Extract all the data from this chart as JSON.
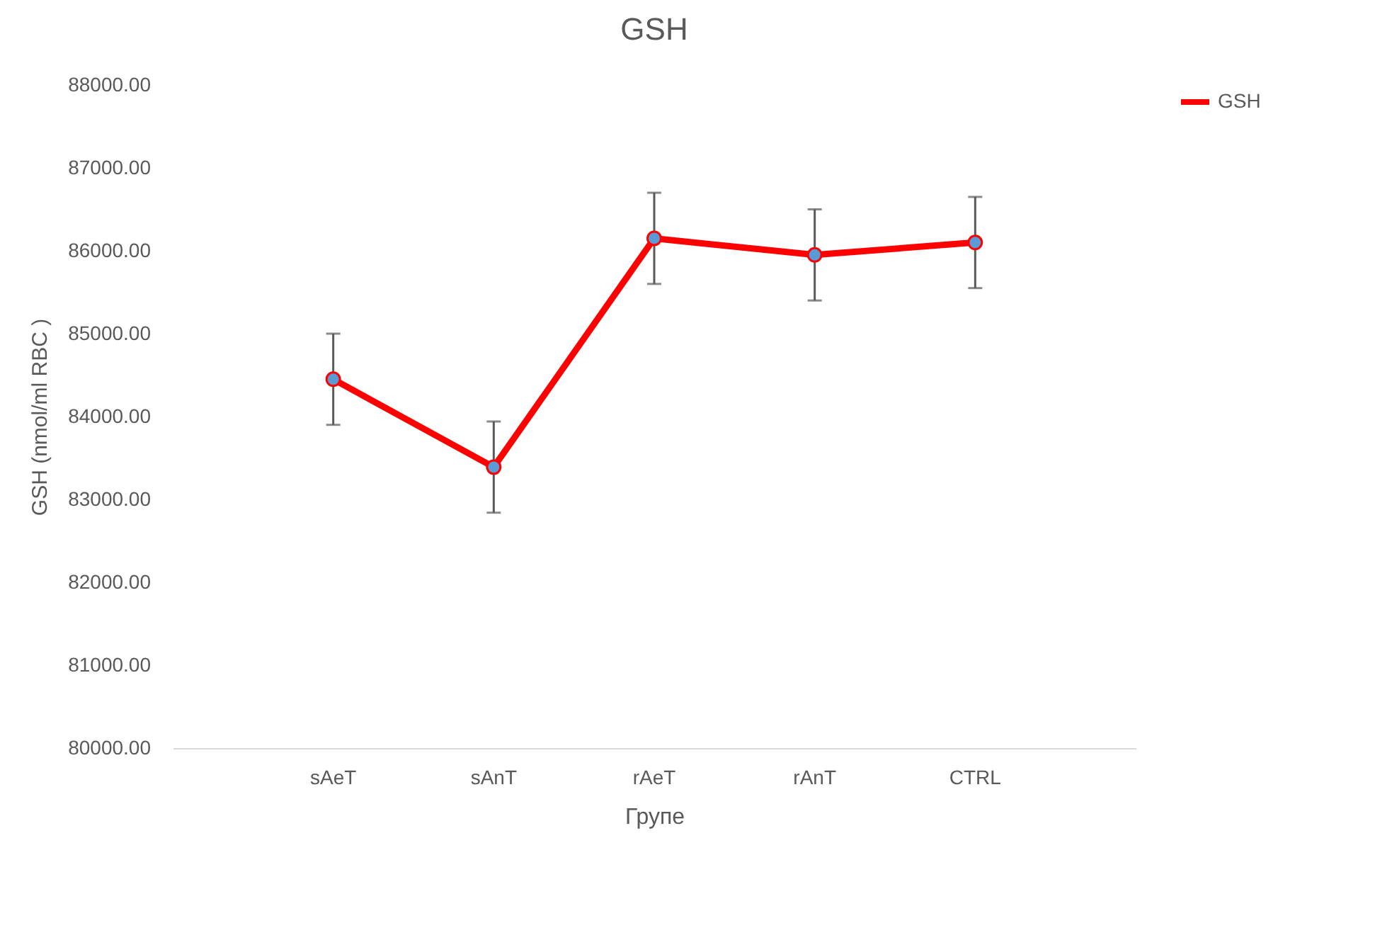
{
  "chart_data": {
    "type": "line",
    "title": "GSH",
    "xlabel": "Групе",
    "ylabel": "GSH (nmol/ml RBC )",
    "categories": [
      "sAeT",
      "sAnT",
      "rAeT",
      "rAnT",
      "CTRL"
    ],
    "series": [
      {
        "name": "GSH",
        "color": "#ff0000",
        "values": [
          84450,
          83390,
          86150,
          85950,
          86100
        ],
        "errors": [
          550,
          550,
          550,
          550,
          550
        ]
      }
    ],
    "ylim": [
      80000,
      88000
    ],
    "yticks": [
      {
        "value": 80000,
        "label": "80000.00"
      },
      {
        "value": 81000,
        "label": "81000.00"
      },
      {
        "value": 82000,
        "label": "82000.00"
      },
      {
        "value": 83000,
        "label": "83000.00"
      },
      {
        "value": 84000,
        "label": "84000.00"
      },
      {
        "value": 85000,
        "label": "85000.00"
      },
      {
        "value": 86000,
        "label": "86000.00"
      },
      {
        "value": 87000,
        "label": "87000.00"
      },
      {
        "value": 88000,
        "label": "88000.00"
      }
    ],
    "grid": false,
    "legend": "right",
    "marker": "circle",
    "line_style": "solid"
  }
}
